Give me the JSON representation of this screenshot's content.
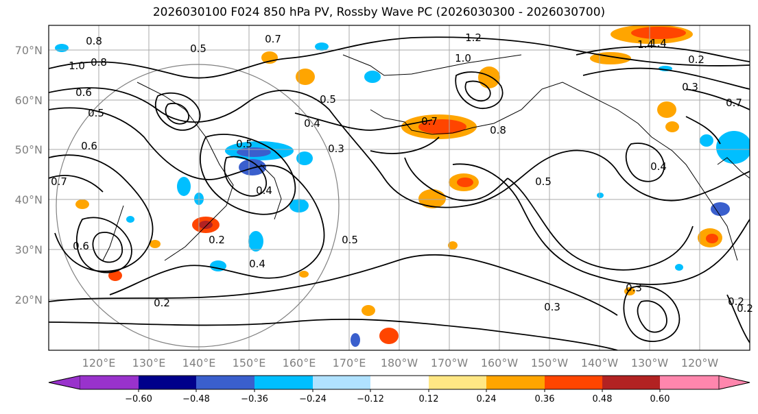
{
  "title": "2026030100 F024 850 hPa PV, Rossby Wave PC (2026030300 - 2026030700)",
  "lat_labels": [
    "70°N",
    "60°N",
    "50°N",
    "40°N",
    "30°N",
    "20°N"
  ],
  "lon_labels": [
    "120°E",
    "130°E",
    "140°E",
    "150°E",
    "160°E",
    "170°E",
    "180°W",
    "170°W",
    "160°W",
    "150°W",
    "140°W",
    "130°W",
    "120°W"
  ],
  "colorbar": {
    "ticks": [
      "−0.60",
      "−0.48",
      "−0.36",
      "−0.24",
      "−0.12",
      "0.12",
      "0.24",
      "0.36",
      "0.48",
      "0.60"
    ],
    "colors": [
      "#9932cc",
      "#00008b",
      "#3a5fcd",
      "#00bfff",
      "#b0e2ff",
      "#ffffff",
      "#ffe784",
      "#ffa500",
      "#ff4500",
      "#b22222",
      "#ff86ad"
    ]
  },
  "contour_labels": [
    "0.8",
    "0.5",
    "0.7",
    "1.2",
    "1.4",
    "1.0",
    "0.8",
    "1.0",
    "0.6",
    "0.5",
    "0.5",
    "0.6",
    "0.7",
    "0.5",
    "0.4",
    "0.3",
    "0.7",
    "0.8",
    "0.5",
    "0.2",
    "0.4",
    "0.2",
    "0.5",
    "0.3",
    "0.2",
    "1.4",
    "0.3",
    "0.2",
    "0.4",
    "0.7",
    "0.3",
    "0.2",
    "0.6",
    "0.4"
  ]
}
